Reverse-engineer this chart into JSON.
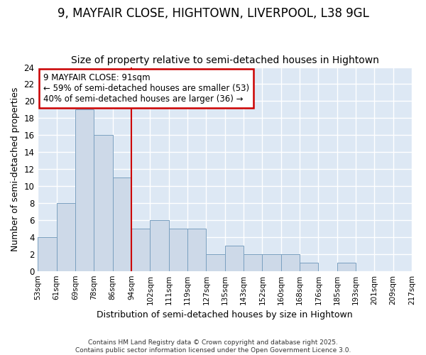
{
  "title1": "9, MAYFAIR CLOSE, HIGHTOWN, LIVERPOOL, L38 9GL",
  "title2": "Size of property relative to semi-detached houses in Hightown",
  "xlabel": "Distribution of semi-detached houses by size in Hightown",
  "ylabel": "Number of semi-detached properties",
  "bar_values": [
    4,
    8,
    19,
    16,
    11,
    5,
    6,
    5,
    5,
    2,
    3,
    2,
    2,
    2,
    1,
    0,
    1,
    0,
    0,
    0
  ],
  "bin_labels": [
    "53sqm",
    "61sqm",
    "69sqm",
    "78sqm",
    "86sqm",
    "94sqm",
    "102sqm",
    "111sqm",
    "119sqm",
    "127sqm",
    "135sqm",
    "143sqm",
    "152sqm",
    "160sqm",
    "168sqm",
    "176sqm",
    "185sqm",
    "193sqm",
    "201sqm",
    "209sqm",
    "217sqm"
  ],
  "bar_color": "#cdd9e8",
  "bar_edge_color": "#7aa0c0",
  "vline_x": 5,
  "vline_color": "#cc0000",
  "annotation_text": "9 MAYFAIR CLOSE: 91sqm\n← 59% of semi-detached houses are smaller (53)\n40% of semi-detached houses are larger (36) →",
  "annotation_box_color": "#cc0000",
  "ylim": [
    0,
    24
  ],
  "yticks": [
    0,
    2,
    4,
    6,
    8,
    10,
    12,
    14,
    16,
    18,
    20,
    22,
    24
  ],
  "bg_color": "#dde8f4",
  "plot_bg_color": "#ffffff",
  "grid_color": "#c8d8ec",
  "footer": "Contains HM Land Registry data © Crown copyright and database right 2025.\nContains public sector information licensed under the Open Government Licence 3.0.",
  "title_fontsize": 12,
  "subtitle_fontsize": 10,
  "ylabel_fontsize": 9,
  "xlabel_fontsize": 9,
  "annot_fontsize": 8.5
}
